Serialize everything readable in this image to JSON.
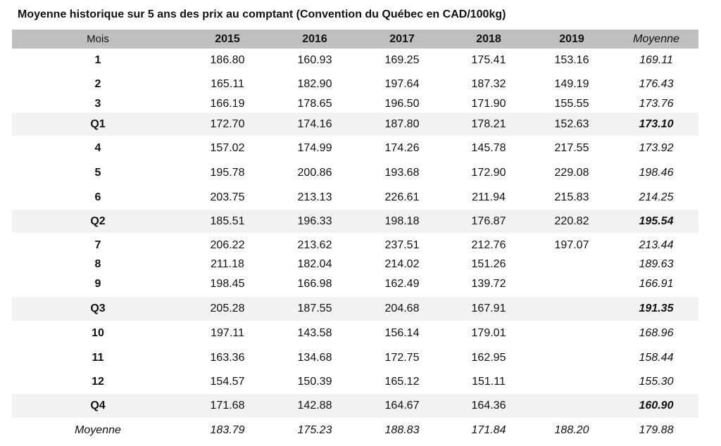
{
  "title": "Moyenne historique sur 5 ans des prix au comptant (Convention du Québec en CAD/100kg)",
  "columns": [
    "Mois",
    "2015",
    "2016",
    "2017",
    "2018",
    "2019",
    "Moyenne"
  ],
  "rows": [
    {
      "label": "1",
      "type": "month",
      "values": [
        "186.80",
        "160.93",
        "169.25",
        "175.41",
        "153.16",
        "169.11"
      ]
    },
    {
      "label": "2",
      "type": "month",
      "values": [
        "165.11",
        "182.90",
        "197.64",
        "187.32",
        "149.19",
        "176.43"
      ]
    },
    {
      "label": "3",
      "type": "month",
      "values": [
        "166.19",
        "178.65",
        "196.50",
        "171.90",
        "155.55",
        "173.76"
      ]
    },
    {
      "label": "Q1",
      "type": "quarter",
      "values": [
        "172.70",
        "174.16",
        "187.80",
        "178.21",
        "152.63",
        "173.10"
      ]
    },
    {
      "label": "4",
      "type": "month",
      "values": [
        "157.02",
        "174.99",
        "174.26",
        "145.78",
        "217.55",
        "173.92"
      ]
    },
    {
      "label": "5",
      "type": "month",
      "values": [
        "195.78",
        "200.86",
        "193.68",
        "172.90",
        "229.08",
        "198.46"
      ]
    },
    {
      "label": "6",
      "type": "month",
      "values": [
        "203.75",
        "213.13",
        "226.61",
        "211.94",
        "215.83",
        "214.25"
      ]
    },
    {
      "label": "Q2",
      "type": "quarter",
      "values": [
        "185.51",
        "196.33",
        "198.18",
        "176.87",
        "220.82",
        "195.54"
      ]
    },
    {
      "label": "7",
      "type": "month",
      "values": [
        "206.22",
        "213.62",
        "237.51",
        "212.76",
        "197.07",
        "213.44"
      ]
    },
    {
      "label": "8",
      "type": "month",
      "values": [
        "211.18",
        "182.04",
        "214.02",
        "151.26",
        "",
        "189.63"
      ]
    },
    {
      "label": "9",
      "type": "month",
      "values": [
        "198.45",
        "166.98",
        "162.49",
        "139.72",
        "",
        "166.91"
      ]
    },
    {
      "label": "Q3",
      "type": "quarter",
      "values": [
        "205.28",
        "187.55",
        "204.68",
        "167.91",
        "",
        "191.35"
      ]
    },
    {
      "label": "10",
      "type": "month",
      "values": [
        "197.11",
        "143.58",
        "156.14",
        "179.01",
        "",
        "168.96"
      ]
    },
    {
      "label": "11",
      "type": "month",
      "values": [
        "163.36",
        "134.68",
        "172.75",
        "162.95",
        "",
        "158.44"
      ]
    },
    {
      "label": "12",
      "type": "month",
      "values": [
        "154.57",
        "150.39",
        "165.12",
        "151.11",
        "",
        "155.30"
      ]
    },
    {
      "label": "Q4",
      "type": "quarter",
      "values": [
        "171.68",
        "142.88",
        "164.67",
        "164.36",
        "",
        "160.90"
      ]
    },
    {
      "label": "Moyenne",
      "type": "average",
      "values": [
        "183.79",
        "175.23",
        "188.83",
        "171.84",
        "188.20",
        "179.88"
      ]
    }
  ],
  "colors": {
    "header_band": "#bfbfbf",
    "quarter_band": "#f2f2f2"
  }
}
